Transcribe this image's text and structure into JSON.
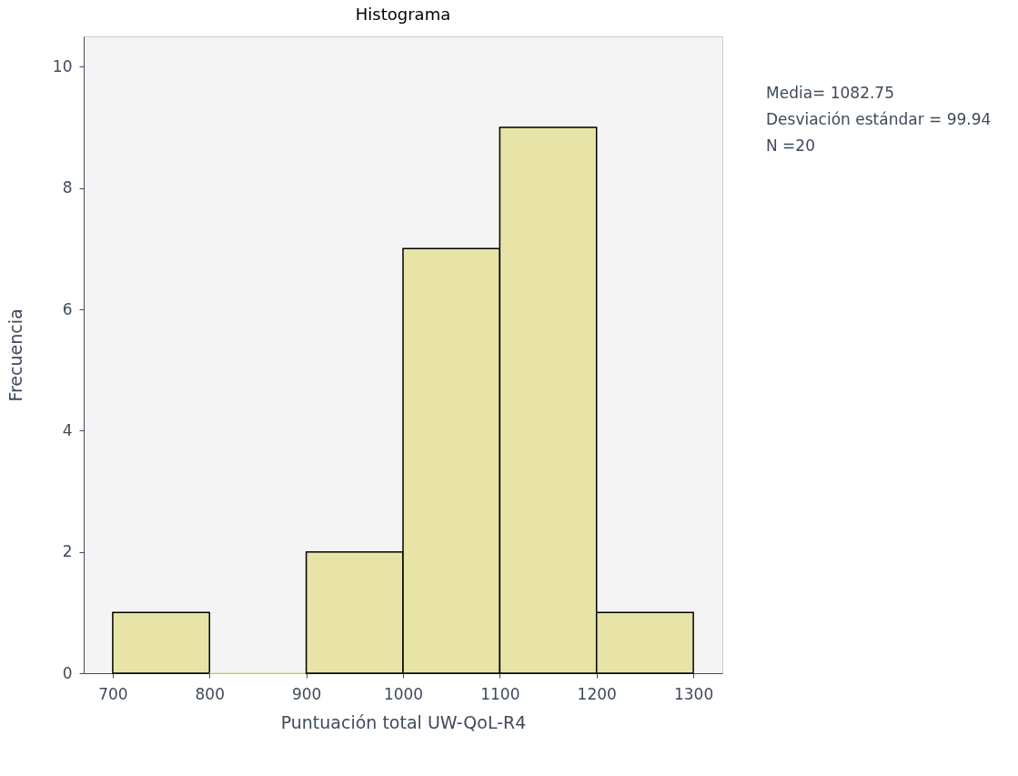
{
  "chart_data": {
    "type": "histogram",
    "title": "Histograma",
    "xlabel": "Puntuación total UW-QoL-R4",
    "ylabel": "Frecuencia",
    "bins": [
      700,
      800,
      900,
      1000,
      1100,
      1200,
      1300
    ],
    "values": [
      1,
      0,
      2,
      7,
      9,
      1
    ],
    "color": "#e8e4a8",
    "xlim": [
      670,
      1330
    ],
    "ylim": [
      0,
      10.5
    ],
    "xticks": [
      700,
      800,
      900,
      1000,
      1100,
      1200,
      1300
    ],
    "yticks": [
      0,
      2,
      4,
      6,
      8,
      10
    ],
    "grid": false,
    "annotations": [
      "Media= 1082.75",
      "Desviación estándar = 99.94",
      "N =20"
    ]
  }
}
